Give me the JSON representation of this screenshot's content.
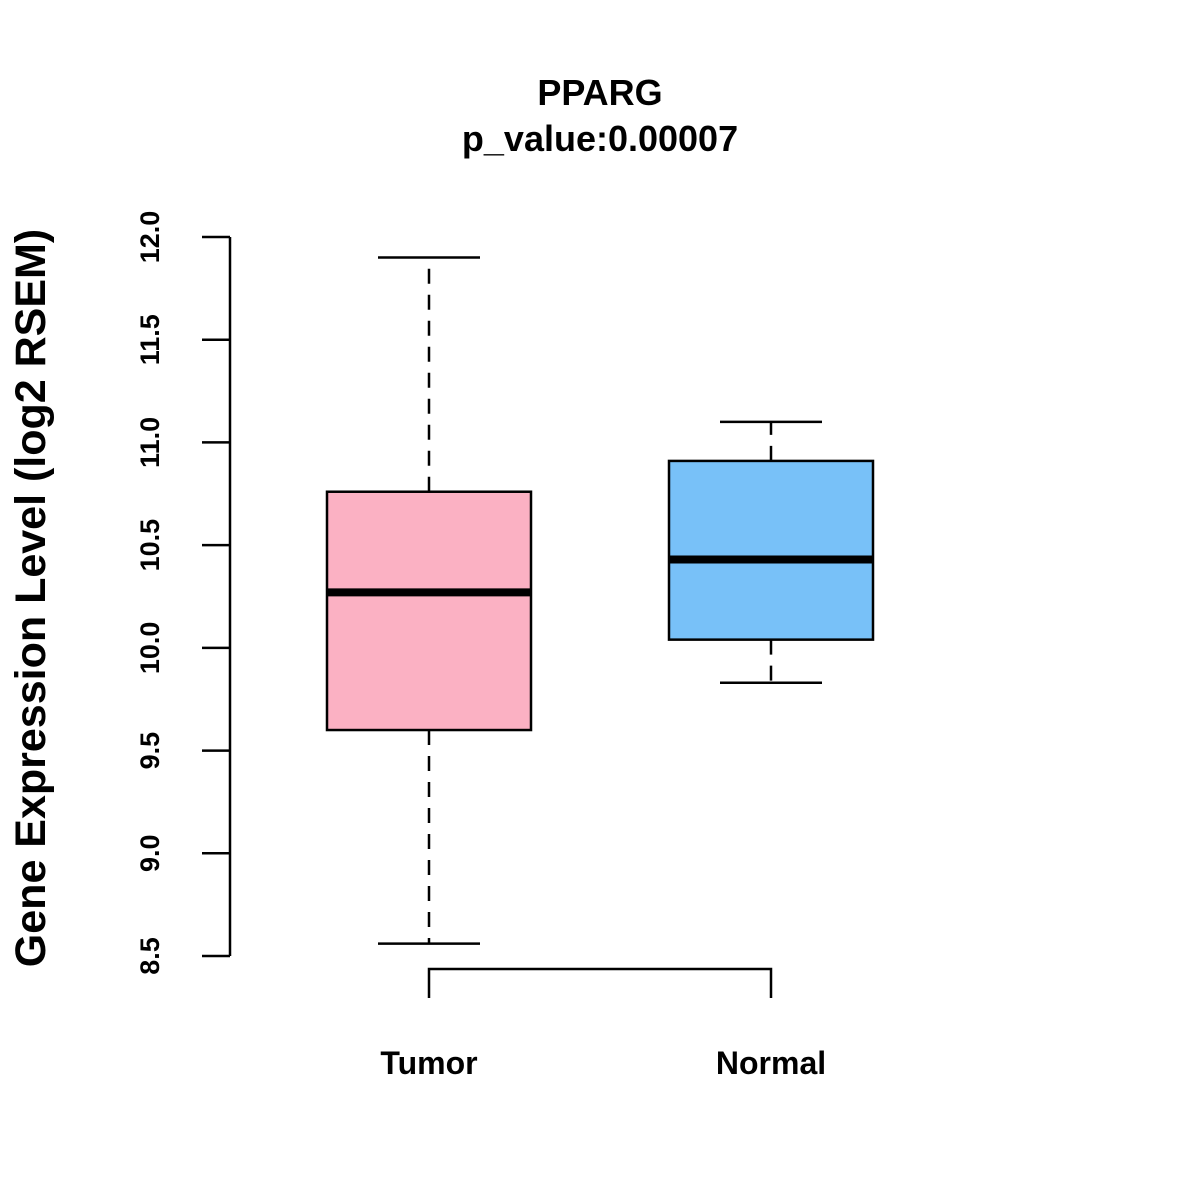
{
  "chart_data": {
    "type": "boxplot",
    "title": "PPARG",
    "subtitle": "p_value:0.00007",
    "xlabel": "",
    "ylabel": "Gene Expression Level (log2 RSEM)",
    "ylim": [
      8.5,
      12.0
    ],
    "yticks": [
      {
        "value": 8.5,
        "label": "8.5"
      },
      {
        "value": 9.0,
        "label": "9.0"
      },
      {
        "value": 9.5,
        "label": "9.5"
      },
      {
        "value": 10.0,
        "label": "10.0"
      },
      {
        "value": 10.5,
        "label": "10.5"
      },
      {
        "value": 11.0,
        "label": "11.0"
      },
      {
        "value": 11.5,
        "label": "11.5"
      },
      {
        "value": 12.0,
        "label": "12.0"
      }
    ],
    "categories": [
      "Tumor",
      "Normal"
    ],
    "boxes": [
      {
        "name": "Tumor",
        "whisker_low": 8.56,
        "q1": 9.6,
        "median": 10.27,
        "q3": 10.76,
        "whisker_high": 11.9,
        "color": "#FBB1C3"
      },
      {
        "name": "Normal",
        "whisker_low": 9.83,
        "q1": 10.04,
        "median": 10.43,
        "q3": 10.91,
        "whisker_high": 11.1,
        "color": "#78C1F8"
      }
    ],
    "significance_bracket": {
      "from": "Tumor",
      "to": "Normal",
      "label": ""
    },
    "grid": false,
    "legend": "none"
  }
}
